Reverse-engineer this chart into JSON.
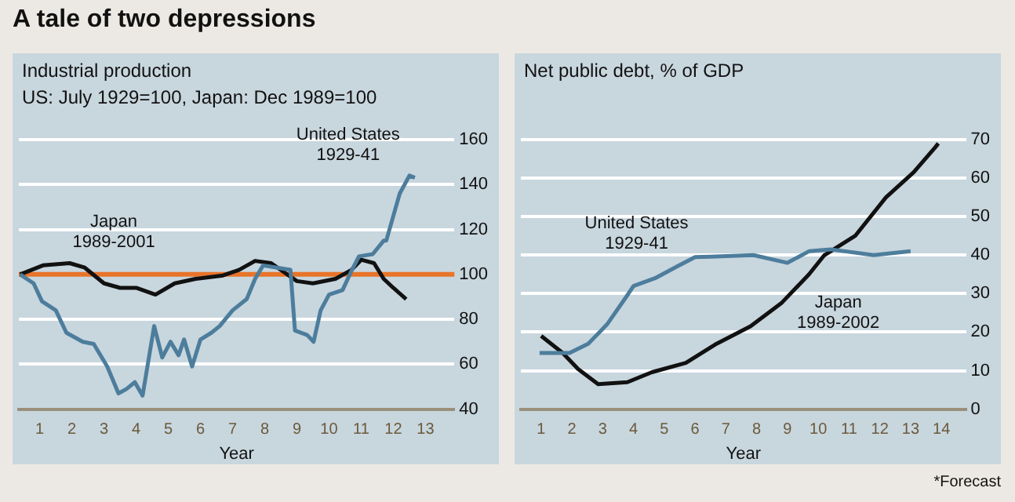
{
  "chart_data": [
    {
      "type": "line",
      "title": "Industrial production",
      "subtitle": "US: July 1929=100, Japan: Dec 1989=100",
      "xlabel": "Year",
      "xlim": [
        0.35,
        13.9
      ],
      "xticks": [
        1,
        2,
        3,
        4,
        5,
        6,
        7,
        8,
        9,
        10,
        11,
        12,
        13
      ],
      "ylim": [
        40,
        160
      ],
      "yticks": [
        40,
        60,
        80,
        100,
        120,
        140,
        160
      ],
      "grid": "y",
      "series": [
        {
          "color": "#4d7d9c",
          "x": [
            0.39,
            0.81,
            1.07,
            1.5,
            1.83,
            2.34,
            2.68,
            3.1,
            3.45,
            3.7,
            3.96,
            4.2,
            4.56,
            4.81,
            5.07,
            5.32,
            5.49,
            5.74,
            6.0,
            6.34,
            6.6,
            7.0,
            7.44,
            7.7,
            7.95,
            8.38,
            8.8,
            8.94,
            9.32,
            9.52,
            9.74,
            10.0,
            10.42,
            10.68,
            10.93,
            11.36,
            11.7,
            11.78,
            12.2,
            12.5,
            12.67
          ],
          "values": [
            100,
            96,
            88,
            84,
            74,
            70,
            69,
            59,
            47,
            49,
            52,
            46,
            77,
            63,
            70,
            64,
            71,
            59,
            71,
            74,
            77,
            84,
            89,
            98,
            104,
            103,
            102,
            75,
            73,
            70,
            84,
            91,
            93,
            101,
            108,
            109,
            115,
            115,
            136,
            144,
            143
          ]
        },
        {
          "color": "#111111",
          "x": [
            0.39,
            1.1,
            1.93,
            2.4,
            3.0,
            3.5,
            4.0,
            4.6,
            5.2,
            5.85,
            6.7,
            7.2,
            7.7,
            8.2,
            8.6,
            9.0,
            9.5,
            10.2,
            10.7,
            11.0,
            11.4,
            11.7,
            12.0,
            12.4
          ],
          "values": [
            100,
            104,
            105,
            103,
            96,
            94,
            94,
            91,
            96,
            98,
            99.5,
            102,
            106,
            105,
            101,
            97,
            96,
            98,
            102,
            106.5,
            105,
            98,
            94,
            89
          ]
        }
      ],
      "ref_lines": [
        {
          "axis": "y",
          "value": 100,
          "color": "#e8742a"
        }
      ],
      "annotations": [
        "A tale of two depressions",
        "Japan 1989-2001",
        "United States 1929-41"
      ]
    },
    {
      "type": "line",
      "title": "Net public debt, % of GDP",
      "xlabel": "Year",
      "xlim": [
        0.34,
        14.8
      ],
      "xticks": [
        1,
        2,
        3,
        4,
        5,
        6,
        7,
        8,
        9,
        10,
        11,
        12,
        13,
        14
      ],
      "ylim": [
        0,
        70
      ],
      "yticks": [
        0,
        10,
        20,
        30,
        40,
        50,
        60,
        70
      ],
      "grid": "y",
      "series": [
        {
          "color": "#4d7d9c",
          "x": [
            0.95,
            1.92,
            2.53,
            3.14,
            3.75,
            4.0,
            4.7,
            5.4,
            6.0,
            6.5,
            7.9,
            9.0,
            9.7,
            10.4,
            11.8,
            13.0
          ],
          "values": [
            14.6,
            14.6,
            17,
            22,
            29,
            32,
            34,
            37,
            39.5,
            39.6,
            40,
            38,
            41,
            41.5,
            40,
            41
          ]
        },
        {
          "color": "#111111",
          "x": [
            1.0,
            1.7,
            2.2,
            2.85,
            3.8,
            4.6,
            5.7,
            6.7,
            7.8,
            8.8,
            9.7,
            10.2,
            11.2,
            12.2,
            13.1,
            13.8,
            13.9
          ],
          "values": [
            19,
            14.6,
            10.4,
            6.5,
            7,
            9.6,
            12,
            17,
            21.5,
            27.5,
            35,
            40,
            45,
            55,
            61.5,
            68,
            69
          ]
        }
      ],
      "annotations": [
        "*Forecast",
        "United States 1929-41",
        "Japan 1989-2002"
      ]
    }
  ]
}
